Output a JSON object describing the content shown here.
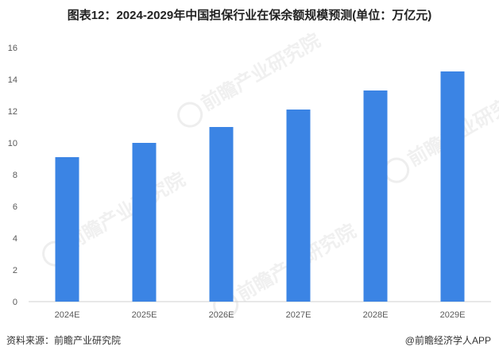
{
  "title": "图表12：2024-2029年中国担保行业在保余额规模预测(单位：万亿元)",
  "footer": {
    "source": "资料来源：前瞻产业研究院",
    "brand": "@前瞻经济学人APP"
  },
  "watermark": "前瞻产业研究院",
  "colors": {
    "bar": "#3b84e4",
    "axis": "#d0d0d0"
  },
  "chart_data": {
    "type": "bar",
    "categories": [
      "2024E",
      "2025E",
      "2026E",
      "2027E",
      "2028E",
      "2029E"
    ],
    "values": [
      9.1,
      10.0,
      11.0,
      12.1,
      13.3,
      14.5
    ],
    "ylim": [
      0,
      16
    ],
    "yticks": [
      0,
      2,
      4,
      6,
      8,
      10,
      12,
      14,
      16
    ],
    "grid": false,
    "legend": "none"
  }
}
